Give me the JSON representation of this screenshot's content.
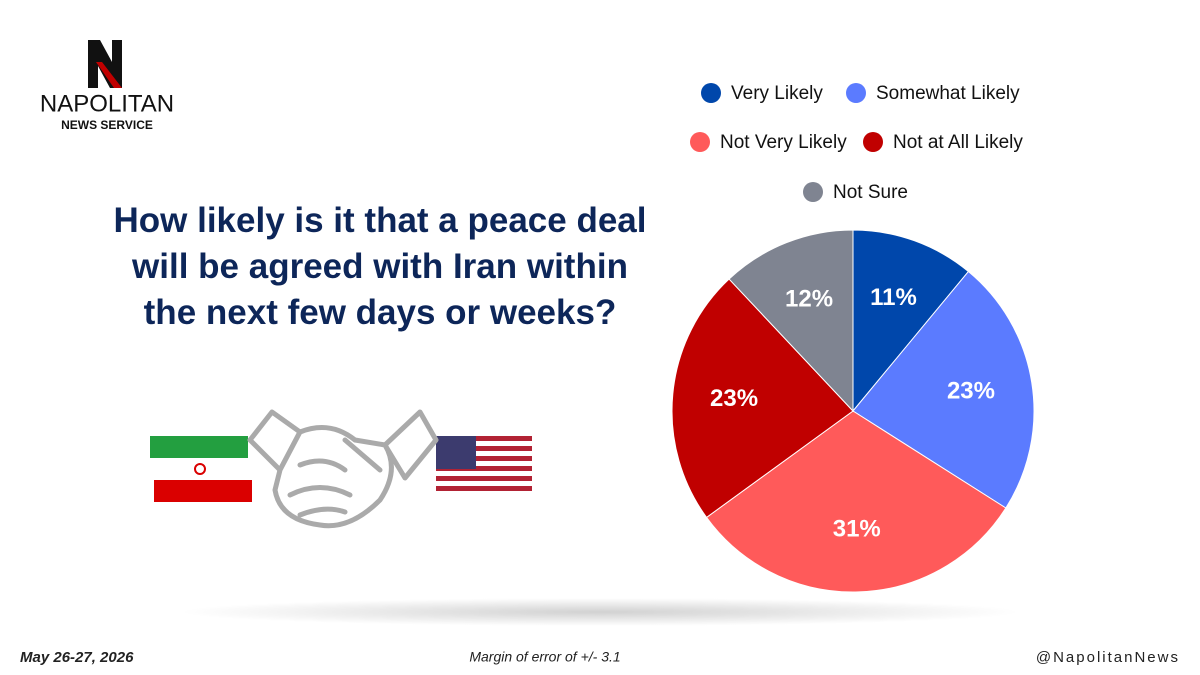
{
  "brand": {
    "name": "NAPOLITAN",
    "tagline": "NEWS SERVICE"
  },
  "chart_data": {
    "type": "pie",
    "title": "How likely is it that a peace deal will be agreed with Iran within the next few days or weeks?",
    "categories": [
      "Very Likely",
      "Somewhat Likely",
      "Not Very Likely",
      "Not at All Likely",
      "Not Sure"
    ],
    "values": [
      11,
      23,
      31,
      23,
      12
    ],
    "value_labels": [
      "11%",
      "23%",
      "31%",
      "23%",
      "12%"
    ],
    "colors": [
      "#0047ab",
      "#5b7bff",
      "#ff5a5a",
      "#c00000",
      "#7f8491"
    ]
  },
  "footer": {
    "date": "May 26-27, 2026",
    "note": "Margin of error of +/- 3.1",
    "handle": "@NapolitanNews"
  }
}
